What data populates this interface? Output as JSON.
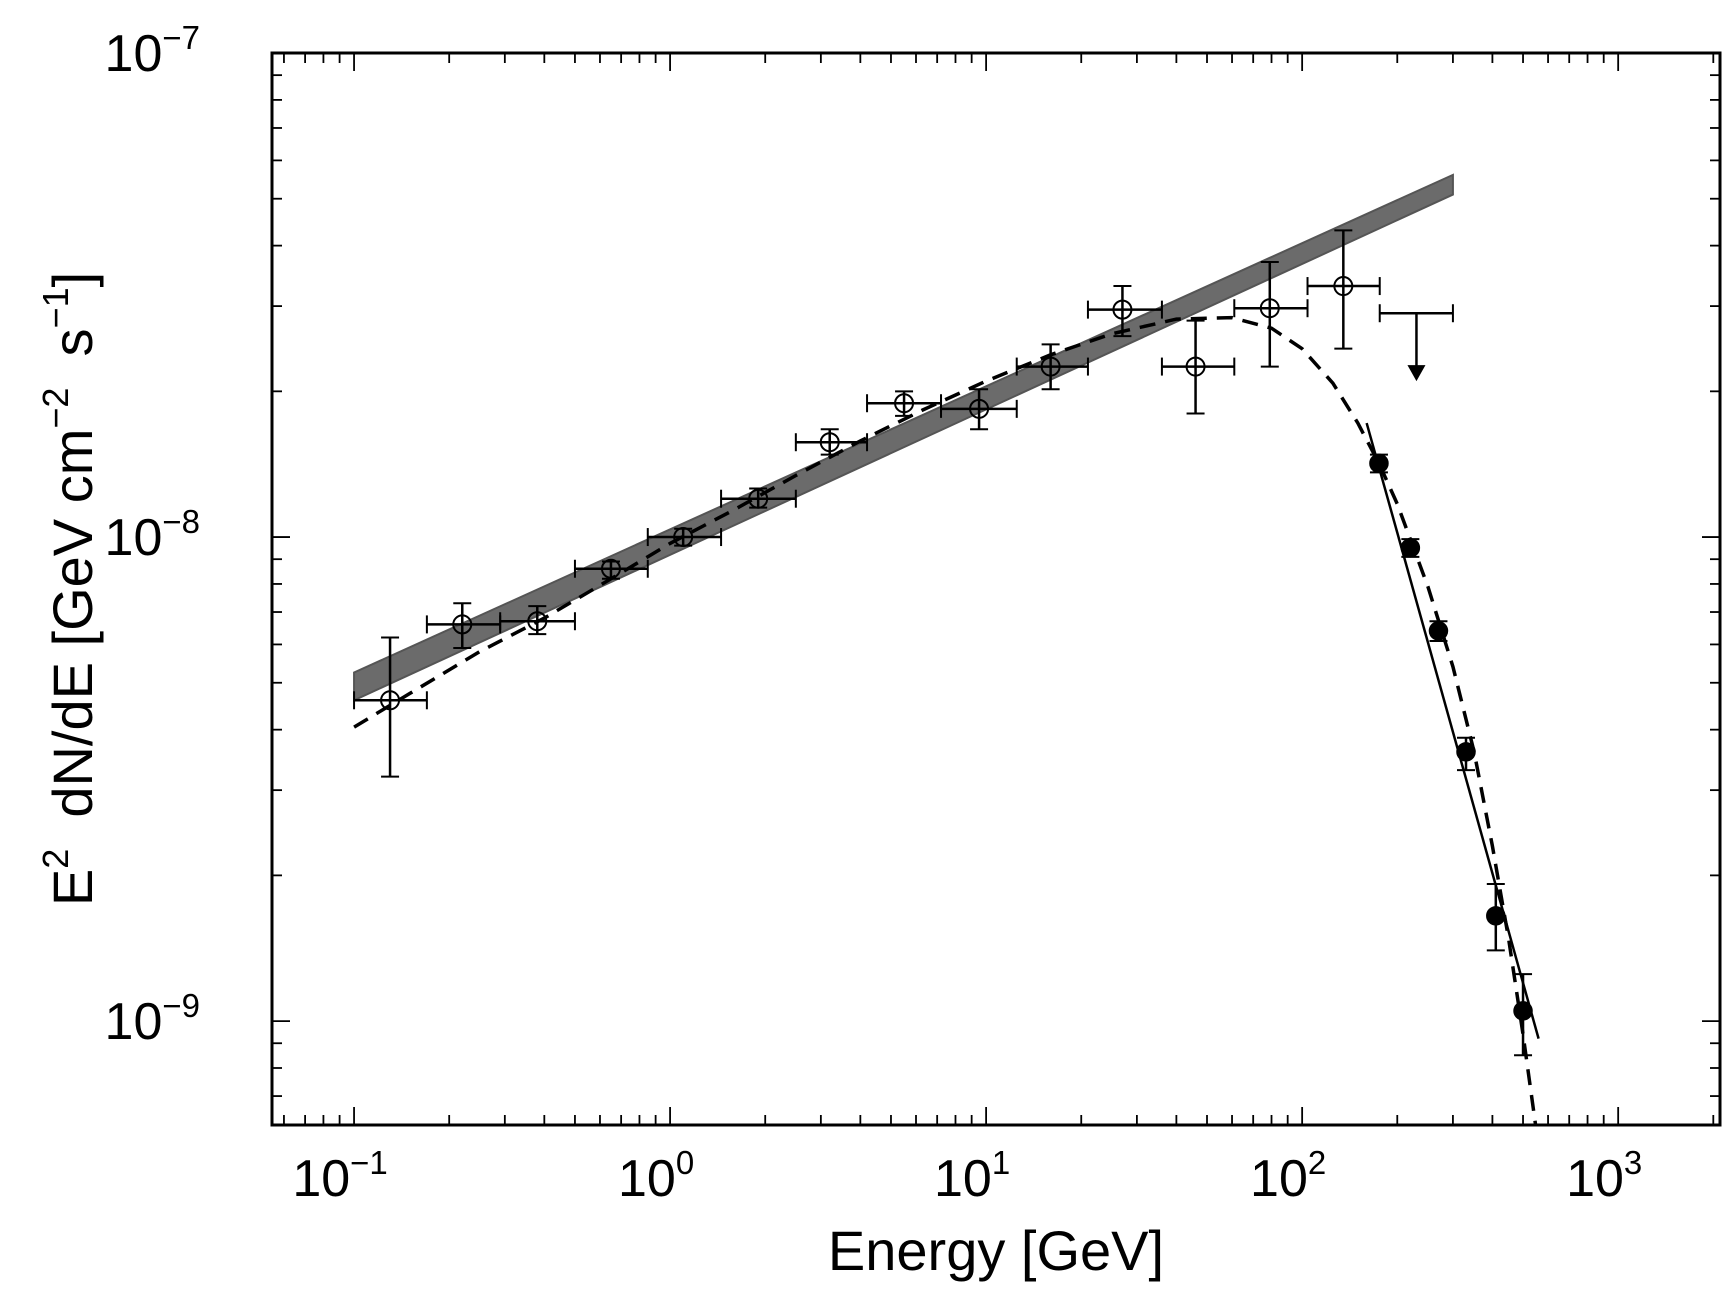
{
  "chart_data": {
    "type": "scatter",
    "xscale": "log",
    "yscale": "log",
    "xlim": [
      0.055,
      2100
    ],
    "ylim": [
      6.1e-10,
      1e-07
    ],
    "xticks": [
      {
        "value": 0.1,
        "base": "10",
        "exp": "−1"
      },
      {
        "value": 1,
        "base": "10",
        "exp": "0"
      },
      {
        "value": 10,
        "base": "10",
        "exp": "1"
      },
      {
        "value": 100,
        "base": "10",
        "exp": "2"
      },
      {
        "value": 1000,
        "base": "10",
        "exp": "3"
      }
    ],
    "yticks": [
      {
        "value": 1e-07,
        "base": "10",
        "exp": "−7"
      },
      {
        "value": 1e-08,
        "base": "10",
        "exp": "−8"
      },
      {
        "value": 1e-09,
        "base": "10",
        "exp": "−9"
      }
    ],
    "xlabel": "Energy [GeV]",
    "ylabel": {
      "part1": "E",
      "sup1": "2",
      "part2": "  dN/dE [GeV cm",
      "sup2": "−2",
      "part3": "  s",
      "sup3": "−1",
      "part4": "]"
    },
    "band": {
      "x": [
        0.1,
        300
      ],
      "y_low": [
        4.6e-09,
        5.1e-08
      ],
      "y_high": [
        5.25e-09,
        5.6e-08
      ],
      "color": "#6b6b6b"
    },
    "open_points": [
      {
        "x": 0.13,
        "y": 4.6e-09,
        "xlo": 0.1,
        "xhi": 0.17,
        "ylo": 3.2e-09,
        "yhi": 6.2e-09
      },
      {
        "x": 0.22,
        "y": 6.6e-09,
        "xlo": 0.17,
        "xhi": 0.29,
        "ylo": 5.9e-09,
        "yhi": 7.3e-09
      },
      {
        "x": 0.38,
        "y": 6.7e-09,
        "xlo": 0.29,
        "xhi": 0.5,
        "ylo": 6.3e-09,
        "yhi": 7.2e-09
      },
      {
        "x": 0.65,
        "y": 8.6e-09,
        "xlo": 0.5,
        "xhi": 0.85,
        "ylo": 8.2e-09,
        "yhi": 8.9e-09
      },
      {
        "x": 1.1,
        "y": 1e-08,
        "xlo": 0.85,
        "xhi": 1.45,
        "ylo": 9.6e-09,
        "yhi": 1.04e-08
      },
      {
        "x": 1.9,
        "y": 1.2e-08,
        "xlo": 1.45,
        "xhi": 2.5,
        "ylo": 1.15e-08,
        "yhi": 1.26e-08
      },
      {
        "x": 3.2,
        "y": 1.57e-08,
        "xlo": 2.5,
        "xhi": 4.2,
        "ylo": 1.48e-08,
        "yhi": 1.67e-08
      },
      {
        "x": 5.5,
        "y": 1.89e-08,
        "xlo": 4.2,
        "xhi": 7.2,
        "ylo": 1.78e-08,
        "yhi": 2e-08
      },
      {
        "x": 9.5,
        "y": 1.84e-08,
        "xlo": 7.2,
        "xhi": 12.5,
        "ylo": 1.67e-08,
        "yhi": 2.02e-08
      },
      {
        "x": 16,
        "y": 2.25e-08,
        "xlo": 12.5,
        "xhi": 21,
        "ylo": 2.02e-08,
        "yhi": 2.5e-08
      },
      {
        "x": 27,
        "y": 2.95e-08,
        "xlo": 21,
        "xhi": 36,
        "ylo": 2.6e-08,
        "yhi": 3.3e-08
      },
      {
        "x": 46,
        "y": 2.25e-08,
        "xlo": 36,
        "xhi": 61,
        "ylo": 1.8e-08,
        "yhi": 2.8e-08
      },
      {
        "x": 79,
        "y": 2.97e-08,
        "xlo": 61,
        "xhi": 104,
        "ylo": 2.25e-08,
        "yhi": 3.7e-08
      },
      {
        "x": 135,
        "y": 3.3e-08,
        "xlo": 104,
        "xhi": 176,
        "ylo": 2.45e-08,
        "yhi": 4.3e-08
      }
    ],
    "upper_limit": {
      "x": 230,
      "y": 2.9e-08,
      "xlo": 176,
      "xhi": 300,
      "arrow_to": 2.12e-08
    },
    "filled_points": [
      {
        "x": 175,
        "y": 1.42e-08,
        "ylo": 1.36e-08,
        "yhi": 1.48e-08
      },
      {
        "x": 220,
        "y": 9.5e-09,
        "ylo": 9.1e-09,
        "yhi": 9.9e-09
      },
      {
        "x": 270,
        "y": 6.4e-09,
        "ylo": 6.1e-09,
        "yhi": 6.7e-09
      },
      {
        "x": 330,
        "y": 3.6e-09,
        "ylo": 3.3e-09,
        "yhi": 3.85e-09
      },
      {
        "x": 410,
        "y": 1.65e-09,
        "ylo": 1.4e-09,
        "yhi": 1.92e-09
      },
      {
        "x": 500,
        "y": 1.05e-09,
        "ylo": 8.5e-10,
        "yhi": 1.25e-09
      }
    ],
    "solid_fit": {
      "x": [
        160,
        560
      ],
      "y": [
        1.72e-08,
        9.2e-10
      ]
    },
    "dashed_model": {
      "x": [
        0.1,
        0.15,
        0.25,
        0.4,
        0.65,
        1.0,
        1.6,
        2.5,
        4,
        6.3,
        10,
        16,
        25,
        40,
        60,
        80,
        100,
        125,
        150,
        175,
        200,
        250,
        300,
        350,
        400,
        450,
        500,
        560
      ],
      "y": [
        4.05e-09,
        4.75e-09,
        5.8e-09,
        6.8e-09,
        8.2e-09,
        9.7e-09,
        1.14e-08,
        1.34e-08,
        1.58e-08,
        1.83e-08,
        2.1e-08,
        2.38e-08,
        2.63e-08,
        2.82e-08,
        2.84e-08,
        2.7e-08,
        2.45e-08,
        2.08e-08,
        1.72e-08,
        1.42e-08,
        1.17e-08,
        7.9e-09,
        5.4e-09,
        3.6e-09,
        2.3e-09,
        1.48e-09,
        9.4e-10,
        5.5e-10
      ]
    }
  }
}
